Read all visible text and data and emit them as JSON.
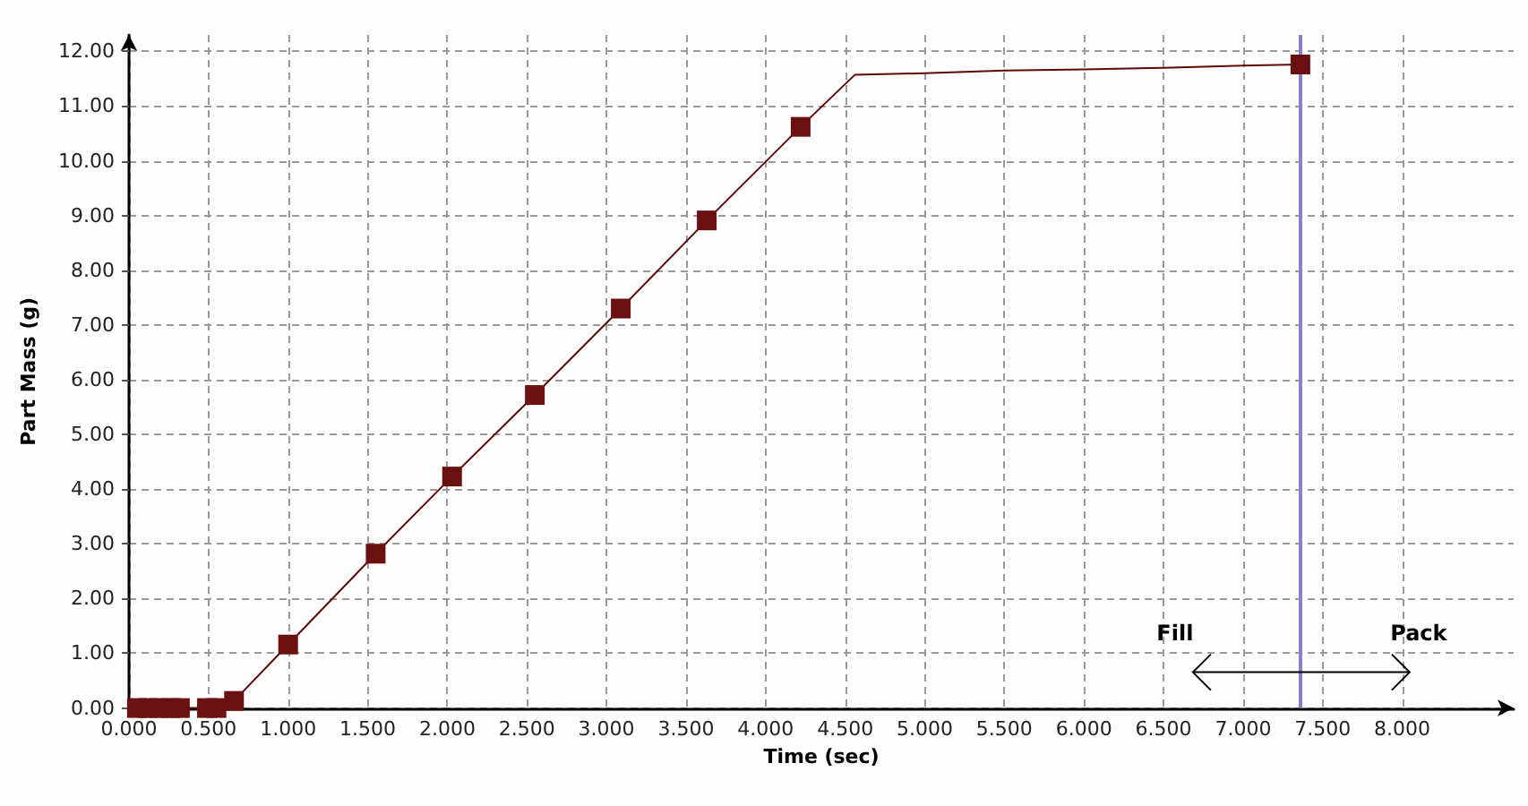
{
  "chart_data": {
    "type": "line",
    "xlabel": "Time (sec)",
    "ylabel": "Part Mass (g)",
    "xlim": [
      0,
      8.7
    ],
    "ylim": [
      0,
      12.3
    ],
    "xticks": [
      {
        "value": 0,
        "label": "0.000"
      },
      {
        "value": 0.5,
        "label": "0.500"
      },
      {
        "value": 1,
        "label": "1.000"
      },
      {
        "value": 1.5,
        "label": "1.500"
      },
      {
        "value": 2,
        "label": "2.000"
      },
      {
        "value": 2.5,
        "label": "2.500"
      },
      {
        "value": 3,
        "label": "3.000"
      },
      {
        "value": 3.5,
        "label": "3.500"
      },
      {
        "value": 4,
        "label": "4.000"
      },
      {
        "value": 4.5,
        "label": "4.500"
      },
      {
        "value": 5,
        "label": "5.000"
      },
      {
        "value": 5.5,
        "label": "5.500"
      },
      {
        "value": 6,
        "label": "6.000"
      },
      {
        "value": 6.5,
        "label": "6.500"
      },
      {
        "value": 7,
        "label": "7.000"
      },
      {
        "value": 7.5,
        "label": "7.500"
      },
      {
        "value": 8,
        "label": "8.000"
      }
    ],
    "yticks": [
      {
        "value": 0,
        "label": "0.00"
      },
      {
        "value": 1,
        "label": "1.00"
      },
      {
        "value": 2,
        "label": "2.00"
      },
      {
        "value": 3,
        "label": "3.00"
      },
      {
        "value": 4,
        "label": "4.00"
      },
      {
        "value": 5,
        "label": "5.00"
      },
      {
        "value": 6,
        "label": "6.00"
      },
      {
        "value": 7,
        "label": "7.00"
      },
      {
        "value": 8,
        "label": "8.00"
      },
      {
        "value": 9,
        "label": "9.00"
      },
      {
        "value": 10,
        "label": "10.00"
      },
      {
        "value": 11,
        "label": "11.00"
      },
      {
        "value": 12,
        "label": "12.00"
      }
    ],
    "grid": true,
    "marker": "square",
    "series": [
      {
        "color": "#5c0a0a",
        "marker": "none",
        "x": [
          0,
          0.6,
          0.66,
          1.0,
          1.55,
          2.03,
          2.55,
          3.09,
          3.63,
          4.22,
          4.56,
          5.0,
          5.5,
          6.0,
          6.5,
          7.0,
          7.36
        ],
        "values": [
          0,
          0,
          0.13,
          1.16,
          2.82,
          4.23,
          5.72,
          7.3,
          8.91,
          10.62,
          11.57,
          11.6,
          11.65,
          11.67,
          11.7,
          11.74,
          11.76
        ]
      },
      {
        "type": "scatter",
        "color": "#6b1010",
        "x": [
          0.05,
          0.12,
          0.19,
          0.26,
          0.32,
          0.49,
          0.55,
          0.66,
          1.0,
          1.55,
          2.03,
          2.55,
          3.09,
          3.63,
          4.22,
          7.36
        ],
        "values": [
          0,
          0,
          0,
          0,
          0,
          0,
          0,
          0.13,
          1.16,
          2.82,
          4.23,
          5.72,
          7.3,
          8.91,
          10.62,
          11.76
        ]
      }
    ],
    "ref_lines": [
      {
        "axis": "x",
        "value": 7.36,
        "color": "#8484c4"
      }
    ],
    "annotations": [
      "Fill",
      "Pack"
    ]
  }
}
